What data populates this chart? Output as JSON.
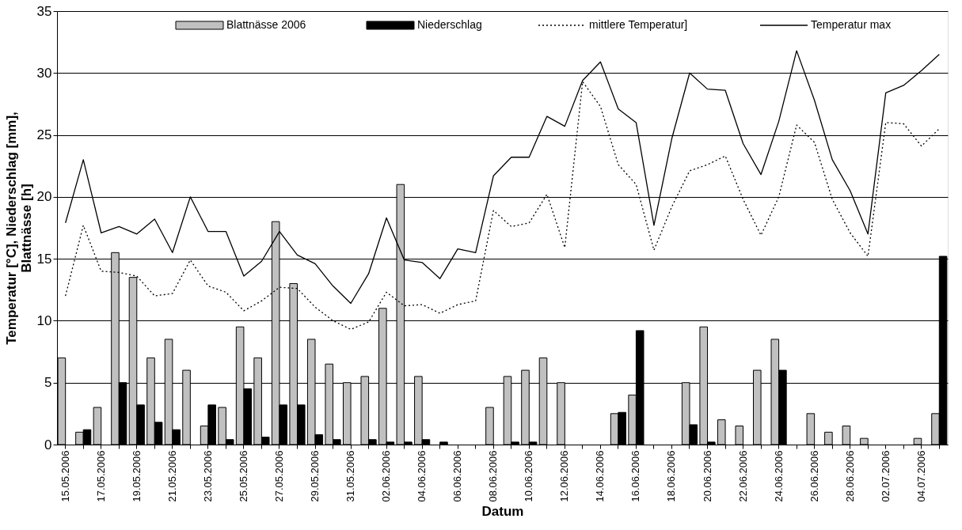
{
  "chart_data": {
    "type": "bar",
    "xlabel": "Datum",
    "ylabel": "Temperatur [°C], Niederschlag [mm], Blattnässe [h]",
    "categories": [
      "15.05.2006",
      null,
      "17.05.2006",
      null,
      "19.05.2006",
      null,
      "21.05.2006",
      null,
      "23.05.2006",
      null,
      "25.05.2006",
      null,
      "27.05.2006",
      null,
      "29.05.2006",
      null,
      "31.05.2006",
      null,
      "02.06.2006",
      null,
      "04.06.2006",
      null,
      "06.06.2006",
      null,
      "08.06.2006",
      null,
      "10.06.2006",
      null,
      "12.06.2006",
      null,
      "14.06.2006",
      null,
      "16.06.2006",
      null,
      "18.06.2006",
      null,
      "20.06.2006",
      null,
      "22.06.2006",
      null,
      "24.06.2006",
      null,
      "26.06.2006",
      null,
      "28.06.2006",
      null,
      "02.07.2006",
      null,
      "04.07.2006",
      null
    ],
    "series": [
      {
        "name": "Blattnässe 2006",
        "color": "#c0c0c0",
        "values": [
          7,
          1,
          3,
          15.5,
          13.5,
          7,
          8.5,
          6,
          1.5,
          3,
          9.5,
          7,
          18,
          13,
          8.5,
          6.5,
          5,
          5.5,
          11,
          21,
          5.5,
          0,
          0,
          0,
          3,
          5.5,
          6,
          7,
          5,
          0,
          0,
          2.5,
          4,
          0,
          0,
          5,
          9.5,
          2,
          1.5,
          6,
          8.5,
          0,
          2.5,
          1,
          1.5,
          0.5,
          0,
          0,
          0.5,
          2.5
        ]
      },
      {
        "name": "Niederschlag",
        "color": "#000000",
        "values": [
          0,
          1.2,
          0,
          5,
          3.2,
          1.8,
          1.2,
          0,
          3.2,
          0.4,
          4.5,
          0.6,
          3.2,
          3.2,
          0.8,
          0.4,
          0,
          0.4,
          0.2,
          0.2,
          0.4,
          0.2,
          0,
          0,
          0,
          0.2,
          0.2,
          0,
          0,
          0,
          0,
          2.6,
          9.2,
          0,
          0,
          1.6,
          0.2,
          0,
          0,
          0,
          6,
          0,
          0,
          0,
          0,
          0,
          0,
          0,
          0,
          15.2
        ]
      },
      {
        "name": "mittlere Temperatur]",
        "type": "line",
        "color": "#000000",
        "line_style": "dotted",
        "values": [
          12,
          17.7,
          14,
          13.9,
          13.6,
          12,
          12.2,
          14.9,
          12.8,
          12.3,
          10.8,
          11.6,
          12.7,
          12.6,
          11.1,
          10,
          9.3,
          9.9,
          12.3,
          11.2,
          11.3,
          10.6,
          11.3,
          11.6,
          18.9,
          17.6,
          17.9,
          20.2,
          15.9,
          29.3,
          27.3,
          22.6,
          21,
          15.7,
          19.2,
          22.1,
          22.6,
          23.3,
          19.8,
          16.9,
          20,
          25.8,
          24.4,
          19.8,
          17.1,
          15.2,
          26,
          25.9,
          24.1,
          25.5
        ]
      },
      {
        "name": "Temperatur max",
        "type": "line",
        "color": "#000000",
        "line_style": "solid",
        "values": [
          17.9,
          23,
          17.1,
          17.6,
          17,
          18.2,
          15.5,
          20,
          17.2,
          17.2,
          13.6,
          14.8,
          17.2,
          15.3,
          14.6,
          12.8,
          11.4,
          13.8,
          18.3,
          14.9,
          14.7,
          13.4,
          15.8,
          15.5,
          21.7,
          23.2,
          23.2,
          26.5,
          25.7,
          29.4,
          30.9,
          27.1,
          26,
          17.7,
          24.7,
          30,
          28.7,
          28.6,
          24.3,
          21.8,
          26.1,
          31.8,
          27.8,
          23,
          20.5,
          17,
          28.4,
          29,
          30.2,
          31.5
        ]
      }
    ],
    "ylim": [
      0,
      35
    ],
    "yticks": [
      0,
      5,
      10,
      15,
      20,
      25,
      30,
      35
    ],
    "grid": "y",
    "legend": "top",
    "marker": "none"
  }
}
